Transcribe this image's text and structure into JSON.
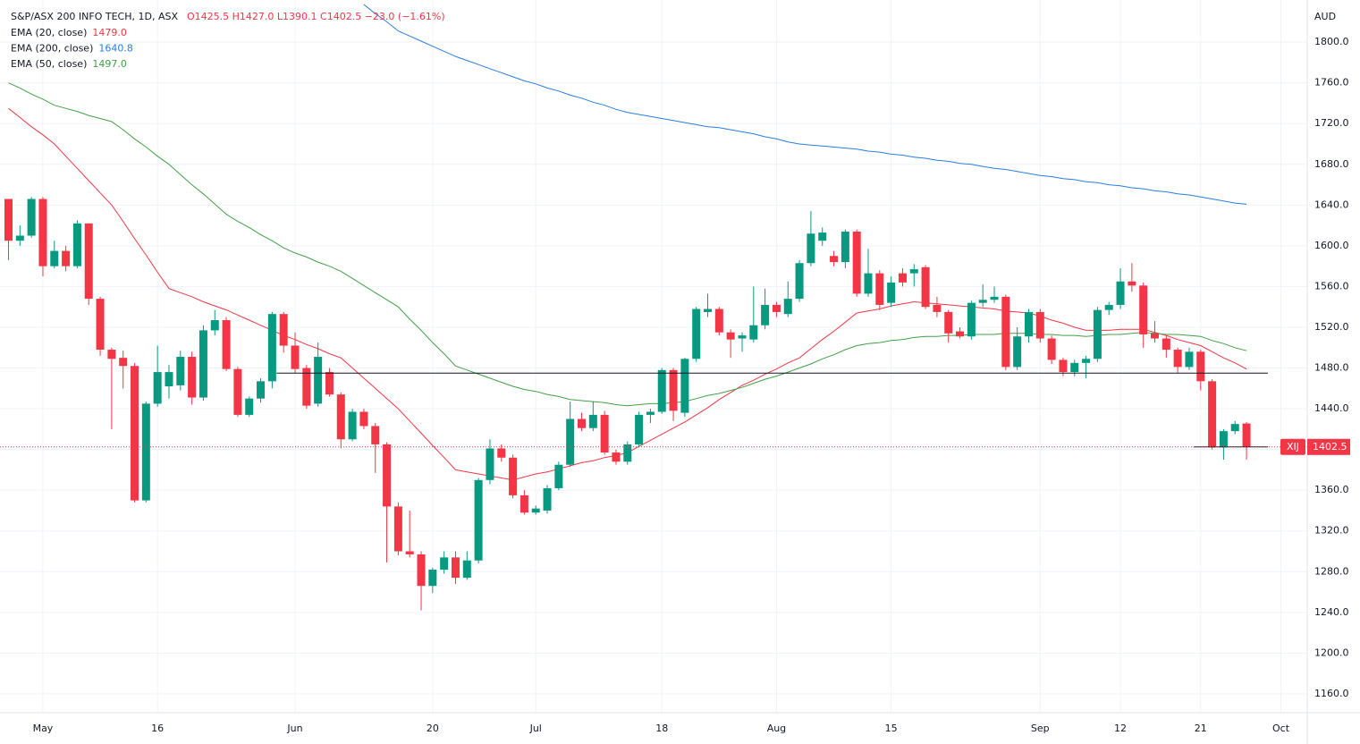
{
  "chart_data": {
    "type": "candlestick",
    "title": "S&P/ASX 200 INFO TECH, 1D, ASX",
    "ohlc_text": "O1425.5 H1427.0 L1390.1 C1402.5 −23.0 (−1.61%)",
    "currency": "AUD",
    "symbol": "XIJ",
    "categories": [
      null,
      null,
      null,
      "May",
      null,
      null,
      null,
      null,
      null,
      null,
      null,
      null,
      null,
      "16",
      null,
      null,
      null,
      null,
      null,
      null,
      null,
      null,
      null,
      null,
      null,
      "Jun",
      null,
      null,
      null,
      null,
      null,
      null,
      null,
      null,
      null,
      null,
      null,
      "20",
      null,
      null,
      null,
      null,
      null,
      null,
      null,
      null,
      "Jul",
      null,
      null,
      null,
      null,
      null,
      null,
      null,
      null,
      null,
      null,
      "18",
      null,
      null,
      null,
      null,
      null,
      null,
      null,
      null,
      null,
      "Aug",
      null,
      null,
      null,
      null,
      null,
      null,
      null,
      null,
      null,
      "15",
      null,
      null,
      null,
      null,
      null,
      null,
      null,
      null,
      null,
      null,
      null,
      null,
      "Sep",
      null,
      null,
      null,
      null,
      null,
      null,
      "12",
      null,
      null,
      null,
      null,
      null,
      null,
      "21",
      null,
      null,
      null,
      null,
      null,
      null,
      "Oct"
    ],
    "open": [
      1646,
      1605,
      1610,
      1646,
      1580,
      1595,
      1580,
      1622,
      1548,
      1498,
      1490,
      1482,
      1350,
      1445,
      1462,
      1463,
      1491,
      1451,
      1517,
      1527,
      1479,
      1434,
      1450,
      1467,
      1533,
      1502,
      1480,
      1445,
      1476,
      1454,
      1410,
      1437,
      1423,
      1405,
      1344,
      1300,
      1297,
      1266,
      1282,
      1294,
      1274,
      1291,
      1370,
      1401,
      1392,
      1355,
      1338,
      1340,
      1362,
      1385,
      1430,
      1421,
      1434,
      1397,
      1388,
      1405,
      1434,
      1437,
      1478,
      1436,
      1489,
      1535,
      1538,
      1515,
      1509,
      1508,
      1522,
      1542,
      1533,
      1548,
      1583,
      1605,
      1590,
      1584,
      1614,
      1553,
      1573,
      1544,
      1573,
      1573,
      1579,
      1542,
      1535,
      1516,
      1511,
      1544,
      1547,
      1550,
      1481,
      1511,
      1535,
      1509,
      1488,
      1476,
      1485,
      1489,
      1537,
      1542,
      1565,
      1561,
      1514,
      1509,
      1498,
      1481,
      1496,
      1467,
      1402,
      1418,
      1425.5,
      null,
      null,
      null
    ],
    "high": [
      1646,
      1620,
      1648,
      1648,
      1605,
      1600,
      1625,
      1622,
      1550,
      1500,
      1497,
      1485,
      1447,
      1502,
      1483,
      1497,
      1496,
      1522,
      1537,
      1530,
      1481,
      1452,
      1470,
      1535,
      1535,
      1515,
      1483,
      1505,
      1480,
      1456,
      1440,
      1440,
      1426,
      1407,
      1348,
      1340,
      1300,
      1284,
      1300,
      1300,
      1300,
      1372,
      1410,
      1405,
      1395,
      1360,
      1345,
      1365,
      1388,
      1447,
      1436,
      1447,
      1438,
      1400,
      1408,
      1437,
      1440,
      1480,
      1480,
      1490,
      1540,
      1553,
      1540,
      1518,
      1515,
      1560,
      1558,
      1545,
      1565,
      1586,
      1634,
      1618,
      1595,
      1616,
      1616,
      1597,
      1576,
      1570,
      1578,
      1582,
      1581,
      1550,
      1537,
      1520,
      1546,
      1562,
      1560,
      1552,
      1520,
      1538,
      1538,
      1512,
      1490,
      1488,
      1492,
      1540,
      1545,
      1578,
      1583,
      1564,
      1526,
      1512,
      1500,
      1500,
      1498,
      1469,
      1420,
      1428,
      1427,
      null,
      null,
      null
    ],
    "low": [
      1586,
      1600,
      1608,
      1570,
      1578,
      1575,
      1578,
      1542,
      1492,
      1420,
      1460,
      1348,
      1348,
      1442,
      1450,
      1458,
      1444,
      1448,
      1512,
      1477,
      1432,
      1432,
      1446,
      1460,
      1495,
      1475,
      1440,
      1442,
      1452,
      1401,
      1408,
      1420,
      1377,
      1289,
      1296,
      1294,
      1242,
      1259,
      1278,
      1268,
      1272,
      1288,
      1366,
      1388,
      1352,
      1336,
      1336,
      1337,
      1360,
      1383,
      1418,
      1418,
      1395,
      1385,
      1385,
      1402,
      1426,
      1435,
      1428,
      1432,
      1486,
      1530,
      1512,
      1490,
      1496,
      1505,
      1518,
      1530,
      1530,
      1545,
      1580,
      1600,
      1580,
      1578,
      1550,
      1550,
      1537,
      1540,
      1560,
      1560,
      1538,
      1530,
      1505,
      1509,
      1508,
      1540,
      1544,
      1478,
      1478,
      1505,
      1505,
      1484,
      1472,
      1472,
      1470,
      1486,
      1532,
      1538,
      1555,
      1500,
      1505,
      1490,
      1475,
      1478,
      1458,
      1400,
      1390,
      1415,
      1390.1,
      null,
      null,
      null
    ],
    "close": [
      1605,
      1610,
      1646,
      1580,
      1595,
      1580,
      1622,
      1548,
      1498,
      1489,
      1482,
      1350,
      1445,
      1476,
      1476,
      1491,
      1451,
      1517,
      1527,
      1479,
      1434,
      1450,
      1467,
      1533,
      1502,
      1479,
      1443,
      1491,
      1454,
      1410,
      1437,
      1423,
      1405,
      1344,
      1300,
      1297,
      1266,
      1282,
      1294,
      1274,
      1291,
      1370,
      1401,
      1392,
      1355,
      1338,
      1342,
      1362,
      1385,
      1430,
      1421,
      1434,
      1397,
      1388,
      1405,
      1434,
      1437,
      1478,
      1438,
      1489,
      1538,
      1538,
      1515,
      1508,
      1512,
      1522,
      1542,
      1535,
      1548,
      1583,
      1612,
      1613,
      1584,
      1614,
      1553,
      1573,
      1542,
      1564,
      1564,
      1577,
      1540,
      1535,
      1514,
      1511,
      1544,
      1547,
      1550,
      1481,
      1511,
      1535,
      1509,
      1488,
      1476,
      1485,
      1489,
      1537,
      1542,
      1565,
      1561,
      1513,
      1509,
      1498,
      1481,
      1496,
      1467,
      1402,
      1418,
      1425,
      1402.5,
      null,
      null,
      null
    ],
    "up_color": "#089981",
    "down_color": "#f23645",
    "series": [
      {
        "name": "EMA (20, close)",
        "last_label": "1479.0",
        "color": "#f23645",
        "values": [
          1735,
          1726,
          1717,
          1709,
          1700,
          1688,
          1676,
          1664,
          1652,
          1640,
          1624,
          1607,
          1591,
          1574,
          1558,
          1554,
          1550,
          1545,
          1541,
          1537,
          1532,
          1527,
          1522,
          1517,
          1512,
          1508,
          1503,
          1499,
          1494,
          1490,
          1480,
          1470,
          1460,
          1450,
          1440,
          1428,
          1416,
          1404,
          1392,
          1380,
          1378,
          1376,
          1374,
          1372,
          1370,
          1373,
          1376,
          1378,
          1381,
          1384,
          1387,
          1389,
          1392,
          1394,
          1397,
          1403,
          1409,
          1415,
          1421,
          1427,
          1434,
          1441,
          1449,
          1456,
          1463,
          1468,
          1474,
          1479,
          1485,
          1490,
          1499,
          1508,
          1516,
          1525,
          1534,
          1536,
          1538,
          1541,
          1543,
          1545,
          1544,
          1543,
          1542,
          1541,
          1540,
          1539,
          1538,
          1536,
          1535,
          1534,
          1531,
          1527,
          1524,
          1520,
          1517,
          1517,
          1517,
          1518,
          1518,
          1518,
          1515,
          1512,
          1508,
          1505,
          1502,
          1496,
          1490,
          1485,
          1479,
          null,
          null,
          null
        ]
      },
      {
        "name": "EMA (200, close)",
        "last_label": "1640.8",
        "color": "#2a7de1",
        "values": [
          null,
          null,
          null,
          null,
          null,
          null,
          null,
          null,
          null,
          null,
          null,
          null,
          null,
          null,
          null,
          null,
          null,
          null,
          null,
          null,
          null,
          null,
          null,
          null,
          null,
          null,
          null,
          null,
          null,
          null,
          null,
          1837,
          1828,
          1820,
          1811,
          1806,
          1801,
          1796,
          1791,
          1786,
          1782,
          1778,
          1774,
          1770,
          1766,
          1762,
          1759,
          1755,
          1752,
          1748,
          1745,
          1741,
          1738,
          1734,
          1731,
          1729,
          1727,
          1725,
          1723,
          1721,
          1719,
          1717,
          1716,
          1714,
          1712,
          1710,
          1707,
          1705,
          1702,
          1700,
          1699,
          1698,
          1697,
          1696,
          1695,
          1693,
          1692,
          1690,
          1689,
          1687,
          1686,
          1684,
          1683,
          1681,
          1680,
          1678,
          1676,
          1675,
          1673,
          1671,
          1669,
          1668,
          1666,
          1665,
          1663,
          1662,
          1660,
          1659,
          1657,
          1656,
          1654,
          1653,
          1651,
          1650,
          1648,
          1646,
          1644,
          1642,
          1640.8,
          null,
          null,
          null
        ]
      },
      {
        "name": "EMA (50, close)",
        "last_label": "1497.0",
        "color": "#43a047",
        "values": [
          1760,
          1755,
          1749,
          1744,
          1738,
          1735,
          1732,
          1728,
          1725,
          1722,
          1714,
          1705,
          1697,
          1688,
          1680,
          1670,
          1660,
          1651,
          1641,
          1631,
          1624,
          1618,
          1611,
          1605,
          1598,
          1593,
          1589,
          1584,
          1580,
          1575,
          1568,
          1561,
          1554,
          1547,
          1540,
          1528,
          1517,
          1505,
          1494,
          1482,
          1478,
          1474,
          1470,
          1466,
          1462,
          1459,
          1457,
          1454,
          1452,
          1449,
          1448,
          1447,
          1446,
          1444,
          1443,
          1444,
          1445,
          1445,
          1446,
          1447,
          1450,
          1453,
          1455,
          1458,
          1461,
          1465,
          1469,
          1472,
          1476,
          1480,
          1484,
          1489,
          1493,
          1498,
          1502,
          1504,
          1505,
          1507,
          1508,
          1510,
          1511,
          1511,
          1512,
          1512,
          1513,
          1513,
          1513,
          1514,
          1514,
          1514,
          1513,
          1513,
          1512,
          1512,
          1511,
          1512,
          1513,
          1513,
          1514,
          1515,
          1514,
          1513,
          1513,
          1512,
          1511,
          1507,
          1504,
          1500,
          1497,
          null,
          null,
          null
        ]
      }
    ],
    "hlines": [
      {
        "value": 1475,
        "start": 24
      },
      {
        "value": 1402.5,
        "start": 104
      }
    ],
    "ylim": [
      1141.5,
      1841.4
    ],
    "yticks": [
      {
        "value": 1160,
        "label": "1160.0"
      },
      {
        "value": 1200,
        "label": "1200.0"
      },
      {
        "value": 1240,
        "label": "1240.0"
      },
      {
        "value": 1280,
        "label": "1280.0"
      },
      {
        "value": 1320,
        "label": "1320.0"
      },
      {
        "value": 1360,
        "label": "1360.0"
      },
      {
        "value": 1400,
        "label": "1400.0"
      },
      {
        "value": 1440,
        "label": "1440.0"
      },
      {
        "value": 1480,
        "label": "1480.0"
      },
      {
        "value": 1520,
        "label": "1520.0"
      },
      {
        "value": 1560,
        "label": "1560.0"
      },
      {
        "value": 1600,
        "label": "1600.0"
      },
      {
        "value": 1640,
        "label": "1640.0"
      },
      {
        "value": 1680,
        "label": "1680.0"
      },
      {
        "value": 1720,
        "label": "1720.0"
      },
      {
        "value": 1760,
        "label": "1760.0"
      },
      {
        "value": 1800,
        "label": "1800.0"
      }
    ],
    "grid": true
  }
}
